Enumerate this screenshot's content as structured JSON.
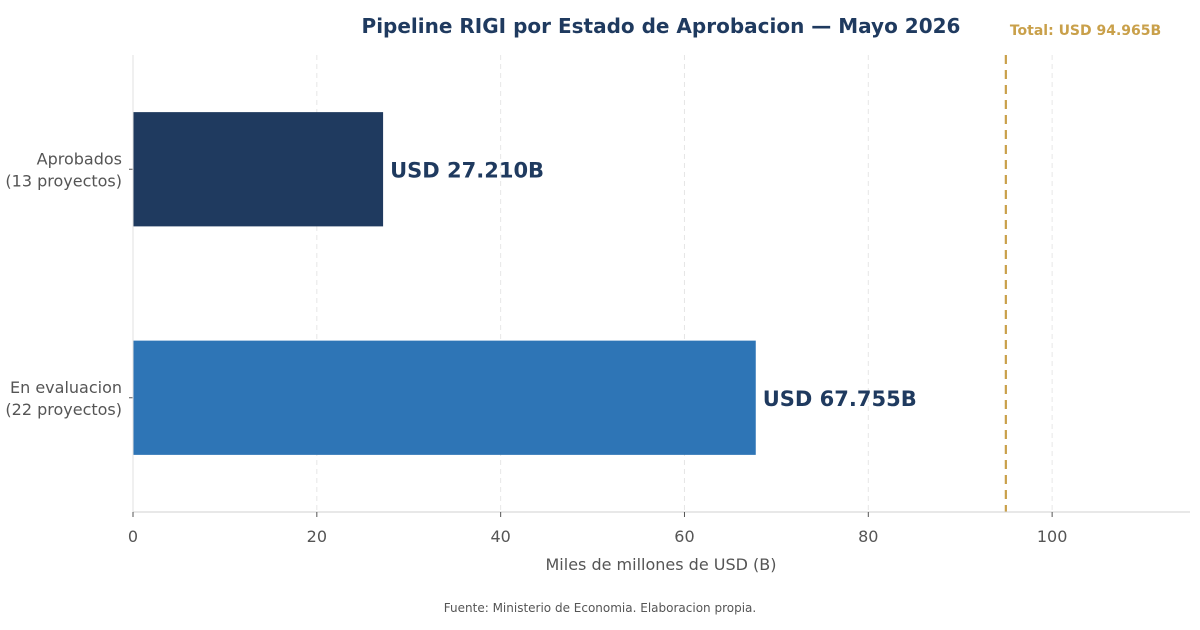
{
  "chart_data": {
    "type": "bar",
    "orientation": "horizontal",
    "title": "Pipeline RIGI por Estado de Aprobacion — Mayo 2026",
    "xlabel": "Miles de millones de USD (B)",
    "ylabel": "",
    "xlim": [
      0,
      115
    ],
    "xticks": [
      0,
      20,
      40,
      60,
      80,
      100
    ],
    "grid": "vertical dashed",
    "categories": [
      [
        "Aprobados",
        "(13 proyectos)"
      ],
      [
        "En evaluacion",
        "(22 proyectos)"
      ]
    ],
    "values": [
      27.21,
      67.755
    ],
    "value_labels": [
      "USD 27.210B",
      "USD 67.755B"
    ],
    "bar_colors": [
      "#1f3a5f",
      "#2e75b6"
    ],
    "reference_line": {
      "value": 94.965,
      "label": "Total: USD 94.965B",
      "color": "#c9a04a",
      "style": "dashed"
    },
    "source": "Fuente: Ministerio de Economia. Elaboracion propia."
  }
}
